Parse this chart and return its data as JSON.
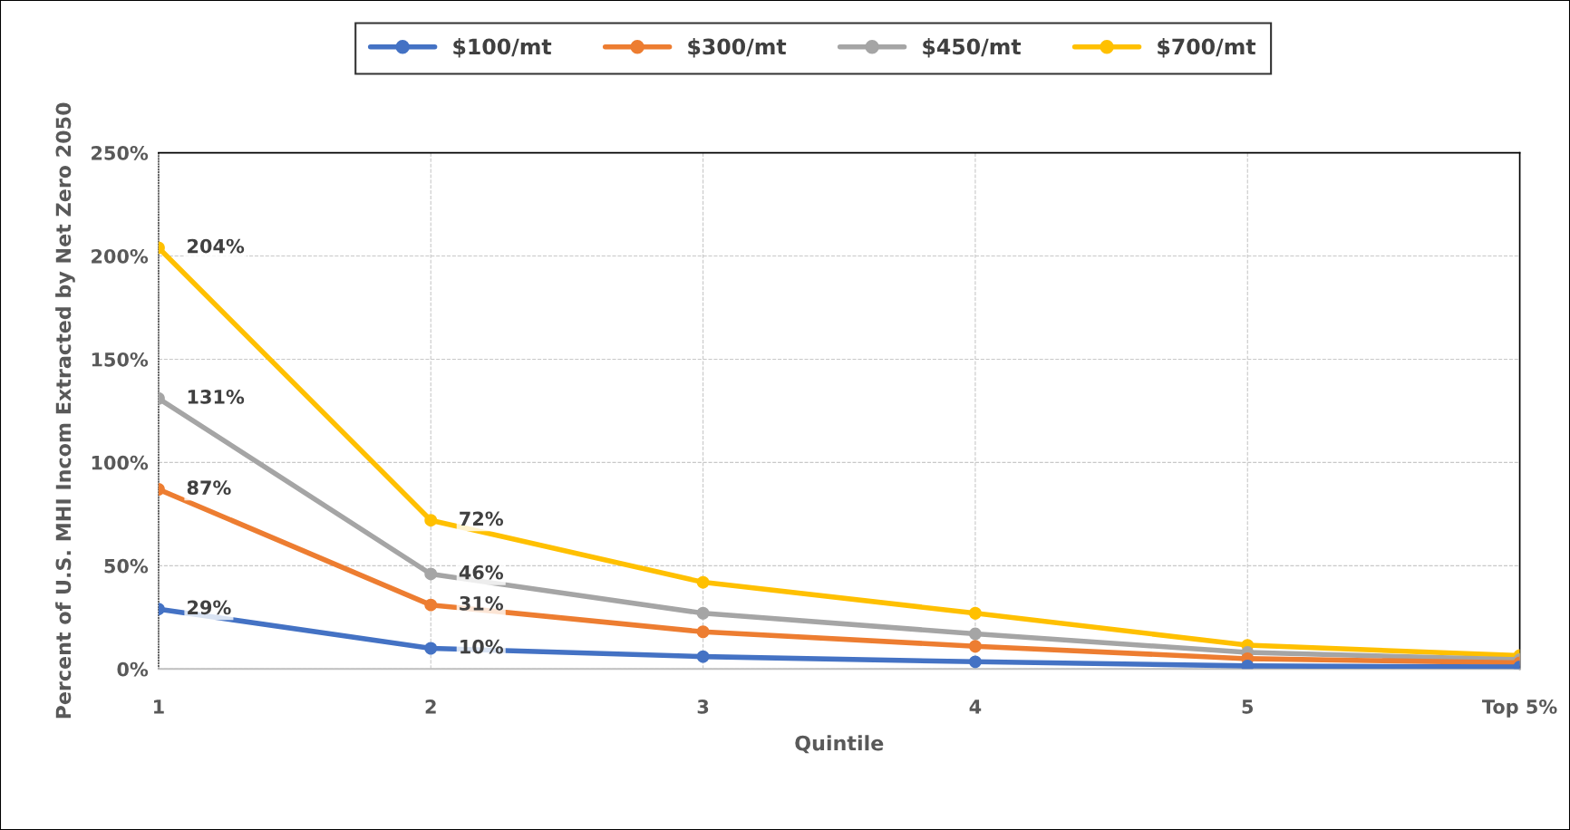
{
  "chart_data": {
    "type": "line",
    "xlabel": "Quintile",
    "ylabel": "Percent of U.S. MHI Incom Extracted by Net Zero 2050",
    "categories": [
      "1",
      "2",
      "3",
      "4",
      "5",
      "Top 5%"
    ],
    "series": [
      {
        "name": "$100/mt",
        "color": "#4472c4",
        "values": [
          29,
          10,
          6,
          3.5,
          1.5,
          1
        ],
        "value_labels": [
          "29%",
          "10%",
          null,
          null,
          null,
          null
        ]
      },
      {
        "name": "$300/mt",
        "color": "#ed7d31",
        "values": [
          87,
          31,
          18,
          11,
          5,
          3
        ],
        "value_labels": [
          "87%",
          "31%",
          null,
          null,
          null,
          null
        ]
      },
      {
        "name": "$450/mt",
        "color": "#a5a5a5",
        "values": [
          131,
          46,
          27,
          17,
          8,
          4.5
        ],
        "value_labels": [
          "131%",
          "46%",
          null,
          null,
          null,
          null
        ]
      },
      {
        "name": "$700/mt",
        "color": "#ffc000",
        "values": [
          204,
          72,
          42,
          27,
          11.5,
          6.5
        ],
        "value_labels": [
          "204%",
          "72%",
          null,
          null,
          null,
          null
        ]
      }
    ],
    "ylim": [
      0,
      250
    ],
    "yticks": [
      {
        "value": 0,
        "label": "0%"
      },
      {
        "value": 50,
        "label": "50%"
      },
      {
        "value": 100,
        "label": "100%"
      },
      {
        "value": 150,
        "label": "150%"
      },
      {
        "value": 200,
        "label": "200%"
      },
      {
        "value": 250,
        "label": "250%"
      }
    ],
    "grid": true,
    "legend": "top",
    "marker": "circle",
    "line_style": "solid"
  }
}
